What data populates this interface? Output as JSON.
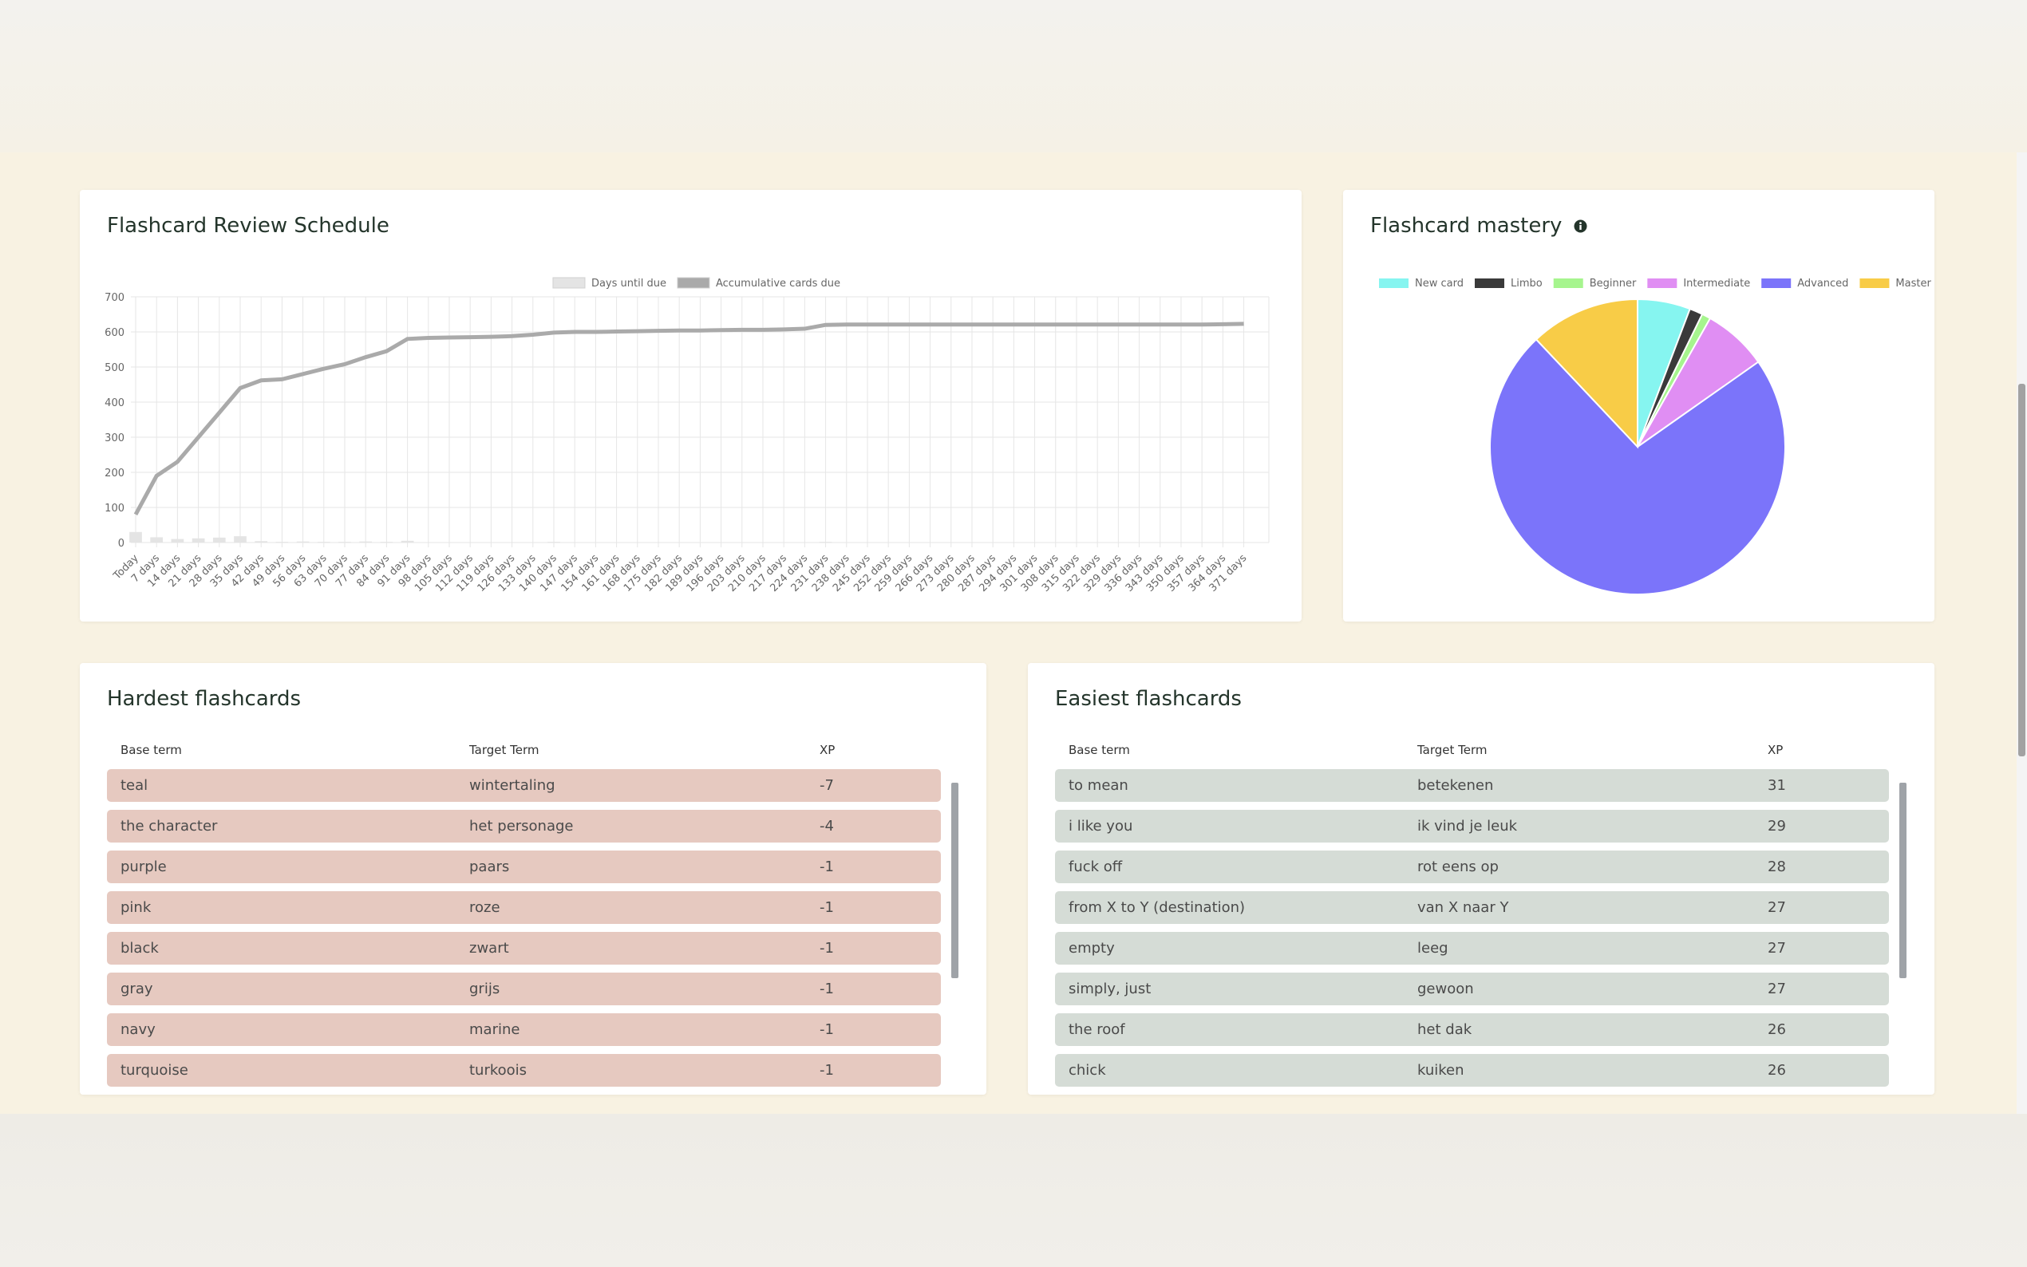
{
  "chart_data": [
    {
      "type": "line",
      "title": "Flashcard Review Schedule",
      "categories": [
        "Today",
        "7 days",
        "14 days",
        "21 days",
        "28 days",
        "35 days",
        "42 days",
        "49 days",
        "56 days",
        "63 days",
        "70 days",
        "77 days",
        "84 days",
        "91 days",
        "98 days",
        "105 days",
        "112 days",
        "119 days",
        "126 days",
        "133 days",
        "140 days",
        "147 days",
        "154 days",
        "161 days",
        "168 days",
        "175 days",
        "182 days",
        "189 days",
        "196 days",
        "203 days",
        "210 days",
        "217 days",
        "224 days",
        "231 days",
        "238 days",
        "245 days",
        "252 days",
        "259 days",
        "266 days",
        "273 days",
        "280 days",
        "287 days",
        "294 days",
        "301 days",
        "308 days",
        "315 days",
        "322 days",
        "329 days",
        "336 days",
        "343 days",
        "350 days",
        "357 days",
        "364 days",
        "371 days"
      ],
      "series": [
        {
          "name": "Days until due",
          "type": "bar",
          "color": "#e4e4e4",
          "values": [
            30,
            15,
            10,
            12,
            14,
            18,
            4,
            2,
            3,
            2,
            2,
            3,
            2,
            5,
            1,
            0,
            1,
            0,
            1,
            1,
            2,
            1,
            0,
            0,
            1,
            0,
            0,
            0,
            0,
            1,
            0,
            0,
            1,
            2,
            0,
            0,
            0,
            0,
            0,
            0,
            0,
            0,
            0,
            0,
            0,
            0,
            0,
            0,
            0,
            0,
            0,
            0,
            1,
            1
          ]
        },
        {
          "name": "Accumulative cards due",
          "type": "line",
          "color": "#aaaaaa",
          "values": [
            80,
            190,
            230,
            300,
            370,
            440,
            462,
            465,
            480,
            495,
            508,
            528,
            545,
            580,
            583,
            584,
            585,
            586,
            588,
            592,
            598,
            600,
            600,
            601,
            602,
            603,
            604,
            604,
            605,
            606,
            606,
            607,
            609,
            620,
            621,
            621,
            621,
            621,
            621,
            621,
            621,
            621,
            621,
            621,
            621,
            621,
            621,
            621,
            621,
            621,
            621,
            621,
            622,
            623
          ]
        }
      ],
      "ylim": [
        0,
        700
      ],
      "yticks": [
        0,
        100,
        200,
        300,
        400,
        500,
        600,
        700
      ],
      "grid": true,
      "legend": "top"
    },
    {
      "type": "pie",
      "title": "Flashcard mastery",
      "categories": [
        "New card",
        "Limbo",
        "Beginner",
        "Intermediate",
        "Advanced",
        "Master"
      ],
      "values": [
        36,
        9,
        6,
        44,
        453,
        75
      ],
      "colors": [
        "#86f5f0",
        "#3a3a3a",
        "#a6f58e",
        "#e08ef3",
        "#7b74fa",
        "#f8cc47"
      ],
      "legend": "top"
    }
  ],
  "tables": [
    {
      "title": "Hardest flashcards",
      "columns": [
        "Base term",
        "Target Term",
        "XP"
      ],
      "rows": [
        [
          "teal",
          "wintertaling",
          -7
        ],
        [
          "the character",
          "het personage",
          -4
        ],
        [
          "purple",
          "paars",
          -1
        ],
        [
          "pink",
          "roze",
          -1
        ],
        [
          "black",
          "zwart",
          -1
        ],
        [
          "gray",
          "grijs",
          -1
        ],
        [
          "navy",
          "marine",
          -1
        ],
        [
          "turquoise",
          "turkoois",
          -1
        ]
      ]
    },
    {
      "title": "Easiest flashcards",
      "columns": [
        "Base term",
        "Target Term",
        "XP"
      ],
      "rows": [
        [
          "to mean",
          "betekenen",
          31
        ],
        [
          "i like you",
          "ik vind je leuk",
          29
        ],
        [
          "fuck off",
          "rot eens op",
          28
        ],
        [
          "from X to Y (destination)",
          "van X naar Y",
          27
        ],
        [
          "empty",
          "leeg",
          27
        ],
        [
          "simply, just",
          "gewoon",
          27
        ],
        [
          "the roof",
          "het dak",
          26
        ],
        [
          "chick",
          "kuiken",
          26
        ]
      ]
    }
  ]
}
